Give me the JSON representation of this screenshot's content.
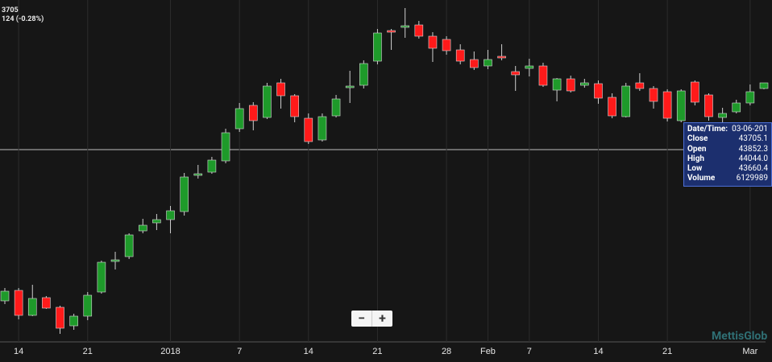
{
  "header": {
    "price": "3705",
    "change": "124 (-0.28%)"
  },
  "chart_data": {
    "type": "candlestick",
    "categories": [
      null,
      "14",
      null,
      null,
      null,
      null,
      "21",
      null,
      null,
      null,
      null,
      null,
      "2018",
      null,
      null,
      null,
      null,
      "7",
      null,
      null,
      null,
      null,
      "14",
      null,
      null,
      null,
      null,
      "21",
      null,
      null,
      null,
      null,
      "28",
      null,
      null,
      "Feb",
      null,
      null,
      "7",
      null,
      null,
      null,
      null,
      "14",
      null,
      null,
      null,
      null,
      "21",
      null,
      null,
      null,
      null,
      null,
      "Mar",
      null
    ],
    "open": [
      39190,
      39450,
      38830,
      39270,
      39030,
      38570,
      38810,
      39410,
      40170,
      40290,
      40930,
      41130,
      41210,
      41410,
      42310,
      42390,
      42670,
      43470,
      44050,
      43750,
      44610,
      44290,
      43730,
      43190,
      43790,
      44490,
      44550,
      45150,
      45910,
      45990,
      46050,
      45770,
      45690,
      45430,
      45190,
      45030,
      45270,
      44890,
      44970,
      45030,
      44430,
      44710,
      44550,
      44590,
      44250,
      43770,
      44610,
      44470,
      44390,
      43670,
      44630,
      44310,
      43750,
      43890,
      44110,
      44470
    ],
    "high": [
      39510,
      39510,
      39590,
      39310,
      39070,
      38870,
      39410,
      40190,
      40410,
      40870,
      41230,
      41350,
      41550,
      42370,
      42570,
      42770,
      43470,
      44110,
      44130,
      44610,
      44710,
      44330,
      43850,
      43850,
      44310,
      44910,
      45170,
      45950,
      45950,
      46470,
      46150,
      45870,
      45770,
      45570,
      45390,
      45430,
      45570,
      45030,
      45210,
      45110,
      44730,
      44790,
      44710,
      44670,
      44350,
      44610,
      44850,
      44530,
      44450,
      44450,
      44670,
      44350,
      43990,
      44190,
      44570,
      44610
    ],
    "low": [
      39110,
      38730,
      38810,
      38990,
      38370,
      38470,
      38710,
      39370,
      39970,
      40230,
      40870,
      40950,
      40870,
      41310,
      42230,
      42350,
      42610,
      43390,
      43430,
      43710,
      43970,
      43630,
      43090,
      43150,
      43750,
      44110,
      44470,
      45070,
      45430,
      45730,
      45710,
      45130,
      45310,
      45070,
      44930,
      44950,
      45170,
      44410,
      44770,
      44510,
      44150,
      44370,
      44490,
      44090,
      43730,
      43750,
      44410,
      43970,
      43650,
      43630,
      44050,
      43670,
      43630,
      43850,
      44050,
      44450
    ],
    "close": [
      39430,
      38830,
      39250,
      39010,
      38510,
      38810,
      39330,
      40150,
      40210,
      40830,
      41070,
      41210,
      41430,
      42270,
      42350,
      42690,
      43370,
      43970,
      43670,
      44530,
      44290,
      43770,
      43150,
      43770,
      44210,
      44530,
      45090,
      45850,
      45870,
      46030,
      45770,
      45470,
      45410,
      45150,
      44990,
      45190,
      45230,
      44810,
      45030,
      44550,
      44710,
      44410,
      44610,
      44230,
      43790,
      44530,
      44470,
      44150,
      43730,
      44410,
      44130,
      43770,
      43850,
      44110,
      44390,
      44610
    ],
    "up_color": "#1e9a2a",
    "down_color": "#ff1a1a",
    "ylim": [
      38170,
      46670
    ],
    "grid": true
  },
  "tooltip": {
    "rows": [
      [
        "Date/Time:",
        "03-06-201"
      ],
      [
        "Close",
        "43705.1"
      ],
      [
        "Open",
        "43852.3"
      ],
      [
        "High",
        "44044.0"
      ],
      [
        "Low",
        "43660.4"
      ],
      [
        "Volume",
        "6129989"
      ]
    ]
  },
  "zoom": {
    "minus": "−",
    "plus": "+"
  },
  "watermark": "MettisGlob"
}
